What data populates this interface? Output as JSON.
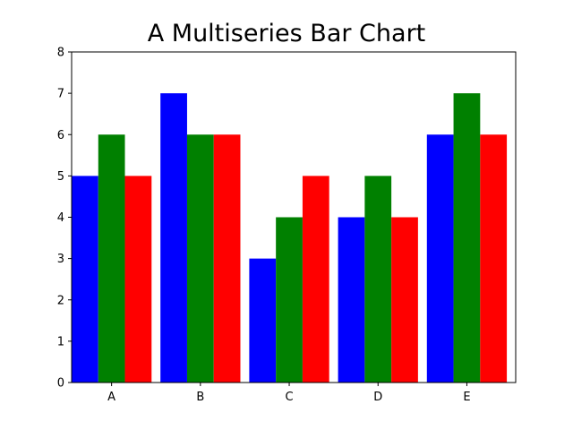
{
  "chart_data": {
    "type": "bar",
    "title": "A Multiseries Bar Chart",
    "categories": [
      "A",
      "B",
      "C",
      "D",
      "E"
    ],
    "series": [
      {
        "color": "#0000ff",
        "values": [
          5,
          7,
          3,
          4,
          6
        ]
      },
      {
        "color": "#008000",
        "values": [
          6,
          6,
          4,
          5,
          7
        ]
      },
      {
        "color": "#ff0000",
        "values": [
          5,
          6,
          5,
          4,
          6
        ]
      }
    ],
    "bar_width": 0.3,
    "xlabel": "",
    "ylabel": "",
    "ylim": [
      0,
      8
    ],
    "xlim": [
      -0.45,
      4.55
    ],
    "yticks": [
      "0",
      "1",
      "2",
      "3",
      "4",
      "5",
      "6",
      "7",
      "8"
    ],
    "grid": false,
    "legend": "none"
  }
}
